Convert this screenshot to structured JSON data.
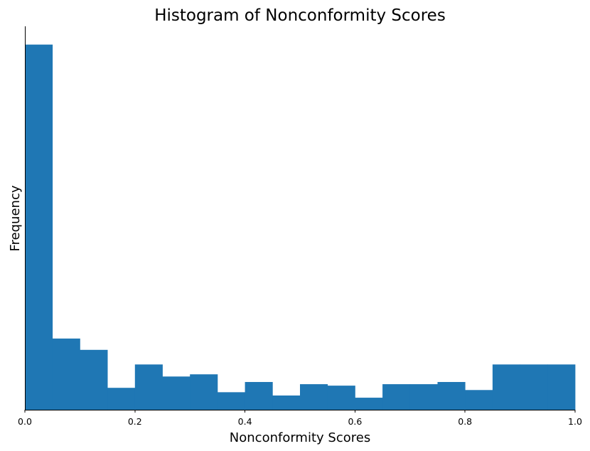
{
  "chart_data": {
    "type": "bar",
    "title": "Histogram of Nonconformity Scores",
    "xlabel": "Nonconformity Scores",
    "ylabel": "Frequency",
    "xlim": [
      0.0,
      1.0
    ],
    "ylim": [
      0,
      105
    ],
    "grid": false,
    "bar_color": "#1f77b4",
    "x_ticks": [
      "0.0",
      "0.2",
      "0.4",
      "0.6",
      "0.8",
      "1.0"
    ],
    "bins": [
      {
        "x0": 0.0,
        "x1": 0.05,
        "value": 100.0
      },
      {
        "x0": 0.05,
        "x1": 0.1,
        "value": 19.5
      },
      {
        "x0": 0.1,
        "x1": 0.15,
        "value": 16.4
      },
      {
        "x0": 0.15,
        "x1": 0.2,
        "value": 6.0
      },
      {
        "x0": 0.2,
        "x1": 0.25,
        "value": 12.4
      },
      {
        "x0": 0.25,
        "x1": 0.3,
        "value": 9.1
      },
      {
        "x0": 0.3,
        "x1": 0.35,
        "value": 9.7
      },
      {
        "x0": 0.35,
        "x1": 0.4,
        "value": 4.8
      },
      {
        "x0": 0.4,
        "x1": 0.45,
        "value": 7.6
      },
      {
        "x0": 0.45,
        "x1": 0.5,
        "value": 3.9
      },
      {
        "x0": 0.5,
        "x1": 0.55,
        "value": 7.0
      },
      {
        "x0": 0.55,
        "x1": 0.6,
        "value": 6.6
      },
      {
        "x0": 0.6,
        "x1": 0.65,
        "value": 3.3
      },
      {
        "x0": 0.65,
        "x1": 0.7,
        "value": 7.0
      },
      {
        "x0": 0.7,
        "x1": 0.75,
        "value": 7.0
      },
      {
        "x0": 0.75,
        "x1": 0.8,
        "value": 7.6
      },
      {
        "x0": 0.8,
        "x1": 0.85,
        "value": 5.4
      },
      {
        "x0": 0.85,
        "x1": 0.9,
        "value": 12.4
      },
      {
        "x0": 0.9,
        "x1": 0.95,
        "value": 12.4
      },
      {
        "x0": 0.95,
        "x1": 1.0,
        "value": 12.4
      }
    ]
  }
}
